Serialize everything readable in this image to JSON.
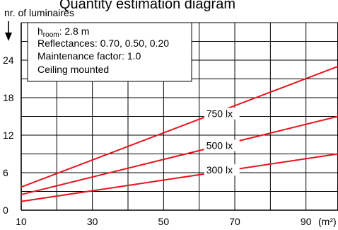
{
  "chart_data": {
    "type": "line",
    "title": "Quantity estimation diagram",
    "ylabel": "nr. of luminaires",
    "xunit": "(m²)",
    "x_ticks": [
      10,
      30,
      50,
      70,
      90
    ],
    "y_ticks": [
      0,
      6,
      12,
      18,
      24
    ],
    "xlim": [
      10,
      99
    ],
    "ylim": [
      0,
      30
    ],
    "grid": true,
    "series": [
      {
        "name": "750 lx",
        "x": [
          10,
          99
        ],
        "y": [
          3.7,
          23.0
        ]
      },
      {
        "name": "500 lx",
        "x": [
          10,
          99
        ],
        "y": [
          2.5,
          15.0
        ]
      },
      {
        "name": "300 lx",
        "x": [
          10,
          99
        ],
        "y": [
          1.4,
          9.0
        ]
      }
    ],
    "info_box": {
      "line1_main": "h",
      "line1_sub": "room",
      "line1_rest": ": 2.8 m",
      "line2": "Reflectances: 0.70, 0.50, 0.20",
      "line3": "Maintenance factor: 1.0",
      "line4": "Ceiling mounted"
    },
    "colors": {
      "series": "#e8141e",
      "grid": "#000000"
    }
  }
}
